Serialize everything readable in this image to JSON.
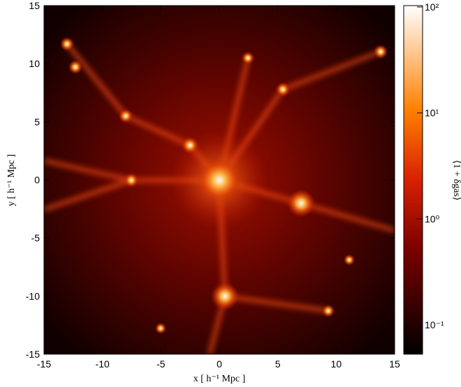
{
  "chart_data": {
    "type": "image",
    "xlabel": "x [ h⁻¹ Mpc ]",
    "ylabel": "y [ h⁻¹ Mpc ]",
    "xlim": [
      -15,
      15
    ],
    "ylim": [
      -15,
      15
    ],
    "xticks": [
      -15,
      -10,
      -5,
      0,
      5,
      10,
      15
    ],
    "yticks": [
      -15,
      -10,
      -5,
      0,
      5,
      10,
      15
    ],
    "colorbar": {
      "label": "⟨1 + δgas⟩",
      "log": true,
      "lim": [
        0.053,
        103
      ],
      "ticks": [
        {
          "value": 0.1,
          "label": "10⁻¹"
        },
        {
          "value": 1,
          "label": "10⁰"
        },
        {
          "value": 10,
          "label": "10¹"
        },
        {
          "value": 100,
          "label": "10²"
        }
      ]
    }
  }
}
